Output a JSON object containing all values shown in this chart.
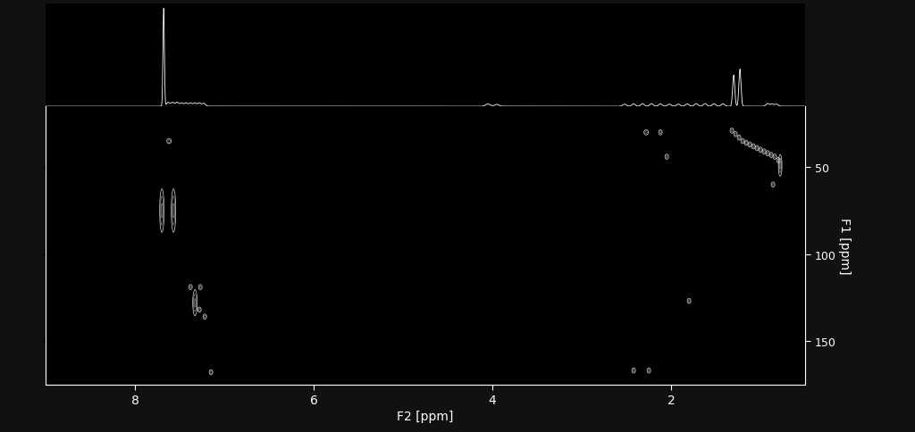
{
  "background_color": "#111111",
  "plot_background": "#000000",
  "axes_color": "#ffffff",
  "text_color": "#ffffff",
  "peak_color": "#ffffff",
  "f2_label": "F2 [ppm]",
  "f1_label": "F1 [ppm]",
  "f2_range": [
    9.0,
    0.5
  ],
  "f1_range": [
    175,
    15
  ],
  "f2_ticks": [
    8,
    6,
    4,
    2
  ],
  "f1_ticks": [
    50,
    100,
    150
  ],
  "figsize": [
    10.24,
    4.85
  ],
  "dpi": 100,
  "peaks_2d": [
    {
      "f2": 7.62,
      "f1": 35,
      "sf2": 0.05,
      "sf1": 3,
      "n": 2,
      "elong": false
    },
    {
      "f2": 7.7,
      "f1": 75,
      "sf2": 0.05,
      "sf1": 10,
      "n": 3,
      "elong": true
    },
    {
      "f2": 7.57,
      "f1": 75,
      "sf2": 0.05,
      "sf1": 10,
      "n": 3,
      "elong": true
    },
    {
      "f2": 7.38,
      "f1": 119,
      "sf2": 0.04,
      "sf1": 3,
      "n": 2,
      "elong": false
    },
    {
      "f2": 7.27,
      "f1": 119,
      "sf2": 0.04,
      "sf1": 3,
      "n": 2,
      "elong": false
    },
    {
      "f2": 7.33,
      "f1": 128,
      "sf2": 0.05,
      "sf1": 6,
      "n": 3,
      "elong": true
    },
    {
      "f2": 7.28,
      "f1": 132,
      "sf2": 0.04,
      "sf1": 3,
      "n": 2,
      "elong": false
    },
    {
      "f2": 7.22,
      "f1": 136,
      "sf2": 0.04,
      "sf1": 3,
      "n": 2,
      "elong": false
    },
    {
      "f2": 7.15,
      "f1": 168,
      "sf2": 0.04,
      "sf1": 3,
      "n": 2,
      "elong": false
    },
    {
      "f2": 2.28,
      "f1": 30,
      "sf2": 0.05,
      "sf1": 3,
      "n": 2,
      "elong": false
    },
    {
      "f2": 2.12,
      "f1": 30,
      "sf2": 0.04,
      "sf1": 3,
      "n": 2,
      "elong": false
    },
    {
      "f2": 2.05,
      "f1": 44,
      "sf2": 0.04,
      "sf1": 3,
      "n": 2,
      "elong": false
    },
    {
      "f2": 2.42,
      "f1": 167,
      "sf2": 0.04,
      "sf1": 3,
      "n": 2,
      "elong": false
    },
    {
      "f2": 1.8,
      "f1": 127,
      "sf2": 0.04,
      "sf1": 3,
      "n": 2,
      "elong": false
    },
    {
      "f2": 2.25,
      "f1": 167,
      "sf2": 0.04,
      "sf1": 3,
      "n": 2,
      "elong": false
    },
    {
      "f2": 1.32,
      "f1": 29,
      "sf2": 0.04,
      "sf1": 3,
      "n": 2,
      "elong": false
    },
    {
      "f2": 1.28,
      "f1": 31,
      "sf2": 0.04,
      "sf1": 3,
      "n": 2,
      "elong": false
    },
    {
      "f2": 1.24,
      "f1": 33,
      "sf2": 0.04,
      "sf1": 3,
      "n": 2,
      "elong": false
    },
    {
      "f2": 1.2,
      "f1": 35,
      "sf2": 0.04,
      "sf1": 3,
      "n": 2,
      "elong": false
    },
    {
      "f2": 1.16,
      "f1": 36,
      "sf2": 0.04,
      "sf1": 3,
      "n": 2,
      "elong": false
    },
    {
      "f2": 1.12,
      "f1": 37,
      "sf2": 0.04,
      "sf1": 3,
      "n": 2,
      "elong": false
    },
    {
      "f2": 1.08,
      "f1": 38,
      "sf2": 0.04,
      "sf1": 3,
      "n": 2,
      "elong": false
    },
    {
      "f2": 1.04,
      "f1": 39,
      "sf2": 0.04,
      "sf1": 3,
      "n": 2,
      "elong": false
    },
    {
      "f2": 1.0,
      "f1": 40,
      "sf2": 0.04,
      "sf1": 3,
      "n": 2,
      "elong": false
    },
    {
      "f2": 0.96,
      "f1": 41,
      "sf2": 0.04,
      "sf1": 3,
      "n": 2,
      "elong": false
    },
    {
      "f2": 0.92,
      "f1": 42,
      "sf2": 0.04,
      "sf1": 3,
      "n": 2,
      "elong": false
    },
    {
      "f2": 0.88,
      "f1": 43,
      "sf2": 0.04,
      "sf1": 3,
      "n": 2,
      "elong": false
    },
    {
      "f2": 0.84,
      "f1": 44,
      "sf2": 0.04,
      "sf1": 3,
      "n": 2,
      "elong": false
    },
    {
      "f2": 0.8,
      "f1": 46,
      "sf2": 0.04,
      "sf1": 3,
      "n": 2,
      "elong": false
    },
    {
      "f2": 0.78,
      "f1": 49,
      "sf2": 0.04,
      "sf1": 5,
      "n": 3,
      "elong": true
    },
    {
      "f2": 0.86,
      "f1": 60,
      "sf2": 0.04,
      "sf1": 3,
      "n": 2,
      "elong": false
    }
  ]
}
